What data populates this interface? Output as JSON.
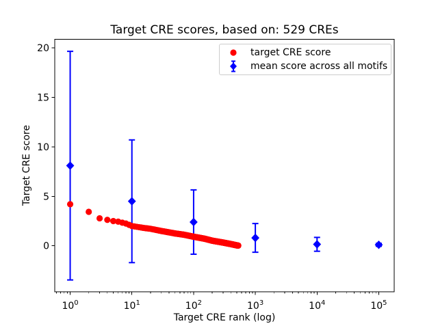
{
  "chart_data": {
    "type": "scatter",
    "title": "Target CRE scores, based on: 529 CREs",
    "xlabel": "Target CRE rank (log)",
    "ylabel": "Target CRE score",
    "x_scale": "log",
    "grid": false,
    "legend_position": "upper right",
    "legend_border_color": "#cccccc",
    "xlim_log10": [
      -0.25,
      5.25
    ],
    "ylim": [
      -4.66,
      20.86
    ],
    "x_major_ticks": [
      1,
      10,
      100,
      1000,
      10000,
      100000
    ],
    "x_tick_base": "10",
    "y_ticks": [
      0,
      5,
      10,
      15,
      20
    ],
    "series": [
      {
        "name": "target CRE score",
        "marker": "circle",
        "color": "#ff0000",
        "n_points": 529,
        "anchors": [
          [
            1,
            4.2
          ],
          [
            2,
            3.43
          ],
          [
            3,
            2.78
          ],
          [
            4,
            2.62
          ],
          [
            5,
            2.5
          ],
          [
            6,
            2.44
          ],
          [
            8,
            2.25
          ],
          [
            10,
            2.0
          ],
          [
            15,
            1.82
          ],
          [
            20,
            1.72
          ],
          [
            30,
            1.5
          ],
          [
            50,
            1.25
          ],
          [
            70,
            1.12
          ],
          [
            100,
            0.92
          ],
          [
            150,
            0.72
          ],
          [
            200,
            0.52
          ],
          [
            300,
            0.33
          ],
          [
            400,
            0.18
          ],
          [
            500,
            0.05
          ],
          [
            529,
            0.02
          ]
        ]
      },
      {
        "name": "mean score across all motifs",
        "marker": "diamond",
        "color": "#0000ff",
        "points": [
          {
            "x": 1,
            "y": 8.1,
            "err": 11.55
          },
          {
            "x": 10,
            "y": 4.5,
            "err": 6.2
          },
          {
            "x": 100,
            "y": 2.4,
            "err": 3.25
          },
          {
            "x": 1000,
            "y": 0.8,
            "err": 1.45
          },
          {
            "x": 10000,
            "y": 0.15,
            "err": 0.7
          },
          {
            "x": 100000,
            "y": 0.1,
            "err": 0.15
          }
        ]
      }
    ]
  }
}
